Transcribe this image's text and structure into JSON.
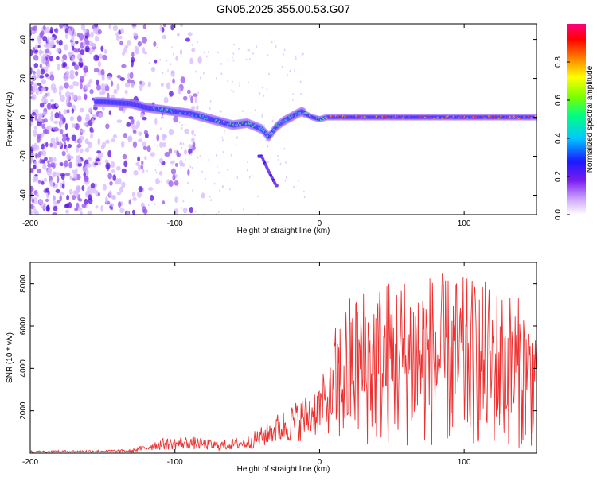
{
  "title": "GN05.2025.355.00.53.G07",
  "chart_data": [
    {
      "type": "heatmap",
      "xlabel": "Height of straight line (km)",
      "ylabel": "Frequency (Hz)",
      "xlim": [
        -200,
        150
      ],
      "ylim": [
        -50,
        48
      ],
      "xticks": [
        -200,
        -100,
        0,
        100
      ],
      "yticks": [
        -40,
        -20,
        0,
        20,
        40
      ],
      "colorbar": {
        "label": "Normalized spectral amplitude",
        "range": [
          0,
          1
        ],
        "ticks": [
          0,
          0.2,
          0.4,
          0.6,
          0.8
        ],
        "colors": [
          "#ffffff",
          "#cfa8ff",
          "#7a1cf0",
          "#1a1aff",
          "#00c8ff",
          "#00ff80",
          "#7dff00",
          "#ffff00",
          "#ff8000",
          "#ff0000",
          "#ff0080"
        ]
      },
      "main_trace": {
        "x": [
          -150,
          -130,
          -120,
          -110,
          -100,
          -90,
          -80,
          -70,
          -60,
          -50,
          -40,
          -35,
          -30,
          -25,
          -20,
          -15,
          -12,
          -8,
          -5,
          0,
          5,
          20,
          50,
          100,
          150
        ],
        "y": [
          8,
          7,
          5,
          4,
          3,
          2,
          0,
          -2,
          -4,
          -3,
          -6,
          -10,
          -5,
          -2,
          0,
          2,
          3,
          1,
          0,
          -1,
          0,
          0,
          0,
          0,
          0
        ]
      },
      "secondary_trace": {
        "x": [
          -40,
          -35,
          -30
        ],
        "y": [
          -20,
          -28,
          -35
        ]
      }
    },
    {
      "type": "line",
      "xlabel": "Height of straight line (km)",
      "ylabel": "SNR (10 * v/v)",
      "xlim": [
        -200,
        150
      ],
      "ylim": [
        0,
        9000
      ],
      "xticks": [
        -200,
        -100,
        0,
        100
      ],
      "yticks": [
        2000,
        4000,
        6000,
        8000
      ],
      "color": "#ee3030",
      "envelope": {
        "x": [
          -200,
          -130,
          -110,
          -90,
          -70,
          -50,
          -40,
          -30,
          -20,
          -10,
          0,
          10,
          20,
          30,
          50,
          70,
          90,
          110,
          130,
          150
        ],
        "y": [
          100,
          150,
          600,
          700,
          500,
          700,
          1100,
          1600,
          2000,
          2400,
          3000,
          3900,
          5000,
          5300,
          5600,
          5800,
          5600,
          5500,
          5200,
          4500
        ]
      }
    }
  ]
}
